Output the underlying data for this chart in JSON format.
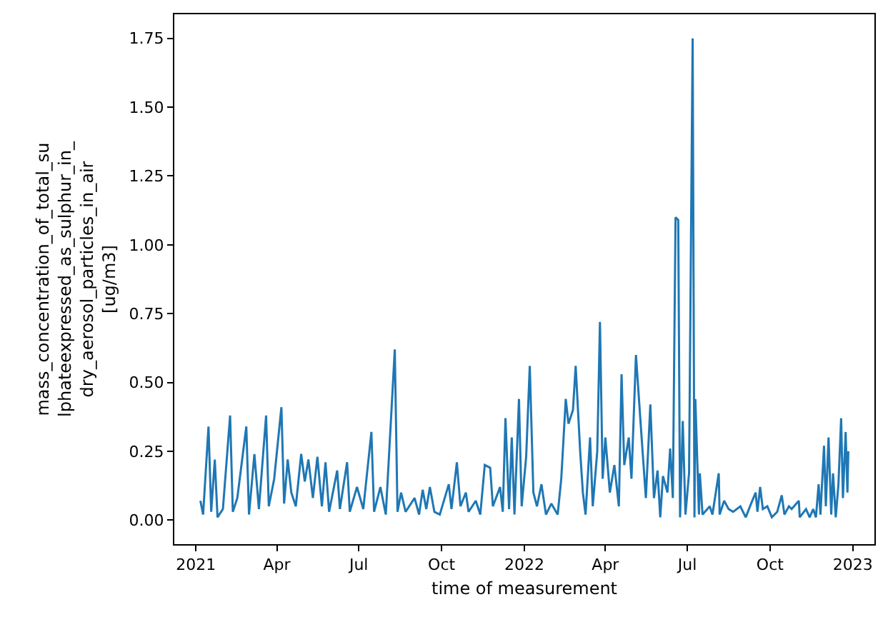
{
  "chart_data": {
    "type": "line",
    "xlabel": "time of measurement",
    "ylabel": "mass_concentration_of_total_su\nlphateexpressed_as_sulphur_in_\ndry_aerosol_particles_in_air\n[ug/m3]",
    "xlim": [
      "2020-12-08",
      "2023-01-25"
    ],
    "xticks": [
      {
        "value": "2021-01-01",
        "label": "2021"
      },
      {
        "value": "2021-04-01",
        "label": "Apr"
      },
      {
        "value": "2021-07-01",
        "label": "Jul"
      },
      {
        "value": "2021-10-01",
        "label": "Oct"
      },
      {
        "value": "2022-01-01",
        "label": "2022"
      },
      {
        "value": "2022-04-01",
        "label": "Apr"
      },
      {
        "value": "2022-07-01",
        "label": "Jul"
      },
      {
        "value": "2022-10-01",
        "label": "Oct"
      },
      {
        "value": "2023-01-01",
        "label": "2023"
      }
    ],
    "ylim": [
      -0.0875,
      1.8375
    ],
    "yticks": [
      {
        "value": 0,
        "label": "0.00"
      },
      {
        "value": 0.25,
        "label": "0.25"
      },
      {
        "value": 0.5,
        "label": "0.50"
      },
      {
        "value": 0.75,
        "label": "0.75"
      },
      {
        "value": 1,
        "label": "1.00"
      },
      {
        "value": 1.25,
        "label": "1.25"
      },
      {
        "value": 1.5,
        "label": "1.50"
      },
      {
        "value": 1.75,
        "label": "1.75"
      }
    ],
    "grid": false,
    "marker": "none",
    "line_style": "solid",
    "series": [
      {
        "color": "#1f77b4",
        "x": [
          "2021-01-06",
          "2021-01-09",
          "2021-01-15",
          "2021-01-18",
          "2021-01-22",
          "2021-01-25",
          "2021-01-31",
          "2021-02-08",
          "2021-02-11",
          "2021-02-16",
          "2021-02-26",
          "2021-03-01",
          "2021-03-07",
          "2021-03-12",
          "2021-03-20",
          "2021-03-23",
          "2021-03-29",
          "2021-04-06",
          "2021-04-09",
          "2021-04-13",
          "2021-04-17",
          "2021-04-22",
          "2021-04-28",
          "2021-05-02",
          "2021-05-06",
          "2021-05-11",
          "2021-05-16",
          "2021-05-21",
          "2021-05-25",
          "2021-05-29",
          "2021-06-07",
          "2021-06-10",
          "2021-06-18",
          "2021-06-21",
          "2021-06-29",
          "2021-07-06",
          "2021-07-15",
          "2021-07-18",
          "2021-07-25",
          "2021-07-31",
          "2021-08-10",
          "2021-08-13",
          "2021-08-17",
          "2021-08-22",
          "2021-09-01",
          "2021-09-06",
          "2021-09-10",
          "2021-09-14",
          "2021-09-18",
          "2021-09-23",
          "2021-09-29",
          "2021-10-09",
          "2021-10-12",
          "2021-10-18",
          "2021-10-22",
          "2021-10-28",
          "2021-10-31",
          "2021-11-08",
          "2021-11-13",
          "2021-11-18",
          "2021-11-24",
          "2021-11-27",
          "2021-12-05",
          "2021-12-08",
          "2021-12-11",
          "2021-12-15",
          "2021-12-18",
          "2021-12-21",
          "2021-12-26",
          "2021-12-29",
          "2022-01-03",
          "2022-01-07",
          "2022-01-11",
          "2022-01-15",
          "2022-01-20",
          "2022-01-25",
          "2022-01-31",
          "2022-02-07",
          "2022-02-11",
          "2022-02-16",
          "2022-02-19",
          "2022-02-24",
          "2022-02-27",
          "2022-03-04",
          "2022-03-07",
          "2022-03-10",
          "2022-03-15",
          "2022-03-18",
          "2022-03-23",
          "2022-03-26",
          "2022-03-29",
          "2022-04-01",
          "2022-04-06",
          "2022-04-11",
          "2022-04-16",
          "2022-04-19",
          "2022-04-22",
          "2022-04-27",
          "2022-04-30",
          "2022-05-05",
          "2022-05-10",
          "2022-05-16",
          "2022-05-21",
          "2022-05-25",
          "2022-05-29",
          "2022-06-01",
          "2022-06-04",
          "2022-06-09",
          "2022-06-12",
          "2022-06-15",
          "2022-06-18",
          "2022-06-21",
          "2022-06-23",
          "2022-06-26",
          "2022-06-29",
          "2022-07-03",
          "2022-07-07",
          "2022-07-09",
          "2022-07-10",
          "2022-07-14",
          "2022-07-15",
          "2022-07-18",
          "2022-07-26",
          "2022-07-29",
          "2022-08-05",
          "2022-08-06",
          "2022-08-11",
          "2022-08-16",
          "2022-08-21",
          "2022-08-29",
          "2022-09-04",
          "2022-09-10",
          "2022-09-15",
          "2022-09-17",
          "2022-09-20",
          "2022-09-23",
          "2022-09-28",
          "2022-10-03",
          "2022-10-09",
          "2022-10-14",
          "2022-10-17",
          "2022-10-22",
          "2022-10-25",
          "2022-11-02",
          "2022-11-03",
          "2022-11-10",
          "2022-11-14",
          "2022-11-18",
          "2022-11-21",
          "2022-11-24",
          "2022-11-26",
          "2022-11-30",
          "2022-12-02",
          "2022-12-05",
          "2022-12-08",
          "2022-12-10",
          "2022-12-13",
          "2022-12-16",
          "2022-12-19",
          "2022-12-21",
          "2022-12-24",
          "2022-12-26",
          "2022-12-27"
        ],
        "values": [
          0.07,
          0.02,
          0.34,
          0.03,
          0.22,
          0.01,
          0.04,
          0.38,
          0.03,
          0.08,
          0.34,
          0.02,
          0.24,
          0.04,
          0.38,
          0.05,
          0.15,
          0.41,
          0.06,
          0.22,
          0.1,
          0.05,
          0.24,
          0.14,
          0.22,
          0.08,
          0.23,
          0.05,
          0.21,
          0.03,
          0.18,
          0.04,
          0.21,
          0.03,
          0.12,
          0.04,
          0.32,
          0.03,
          0.12,
          0.02,
          0.62,
          0.03,
          0.1,
          0.03,
          0.08,
          0.02,
          0.11,
          0.04,
          0.12,
          0.03,
          0.02,
          0.13,
          0.04,
          0.21,
          0.05,
          0.1,
          0.03,
          0.07,
          0.02,
          0.2,
          0.19,
          0.05,
          0.12,
          0.03,
          0.37,
          0.04,
          0.3,
          0.02,
          0.44,
          0.05,
          0.23,
          0.56,
          0.1,
          0.05,
          0.13,
          0.02,
          0.06,
          0.02,
          0.15,
          0.44,
          0.35,
          0.4,
          0.56,
          0.25,
          0.1,
          0.02,
          0.3,
          0.05,
          0.25,
          0.72,
          0.15,
          0.3,
          0.1,
          0.2,
          0.05,
          0.53,
          0.2,
          0.3,
          0.15,
          0.6,
          0.36,
          0.08,
          0.42,
          0.08,
          0.18,
          0.01,
          0.16,
          0.1,
          0.26,
          0.08,
          1.1,
          1.09,
          0.01,
          0.36,
          0.02,
          0.17,
          1.75,
          0.01,
          0.44,
          0.02,
          0.17,
          0.02,
          0.05,
          0.02,
          0.17,
          0.02,
          0.07,
          0.04,
          0.03,
          0.05,
          0.01,
          0.06,
          0.1,
          0.03,
          0.12,
          0.04,
          0.05,
          0.01,
          0.03,
          0.09,
          0.02,
          0.05,
          0.04,
          0.07,
          0.01,
          0.04,
          0.01,
          0.04,
          0.01,
          0.13,
          0.02,
          0.27,
          0.05,
          0.3,
          0.02,
          0.17,
          0.01,
          0.13,
          0.37,
          0.08,
          0.32,
          0.1,
          0.25
        ]
      }
    ]
  }
}
